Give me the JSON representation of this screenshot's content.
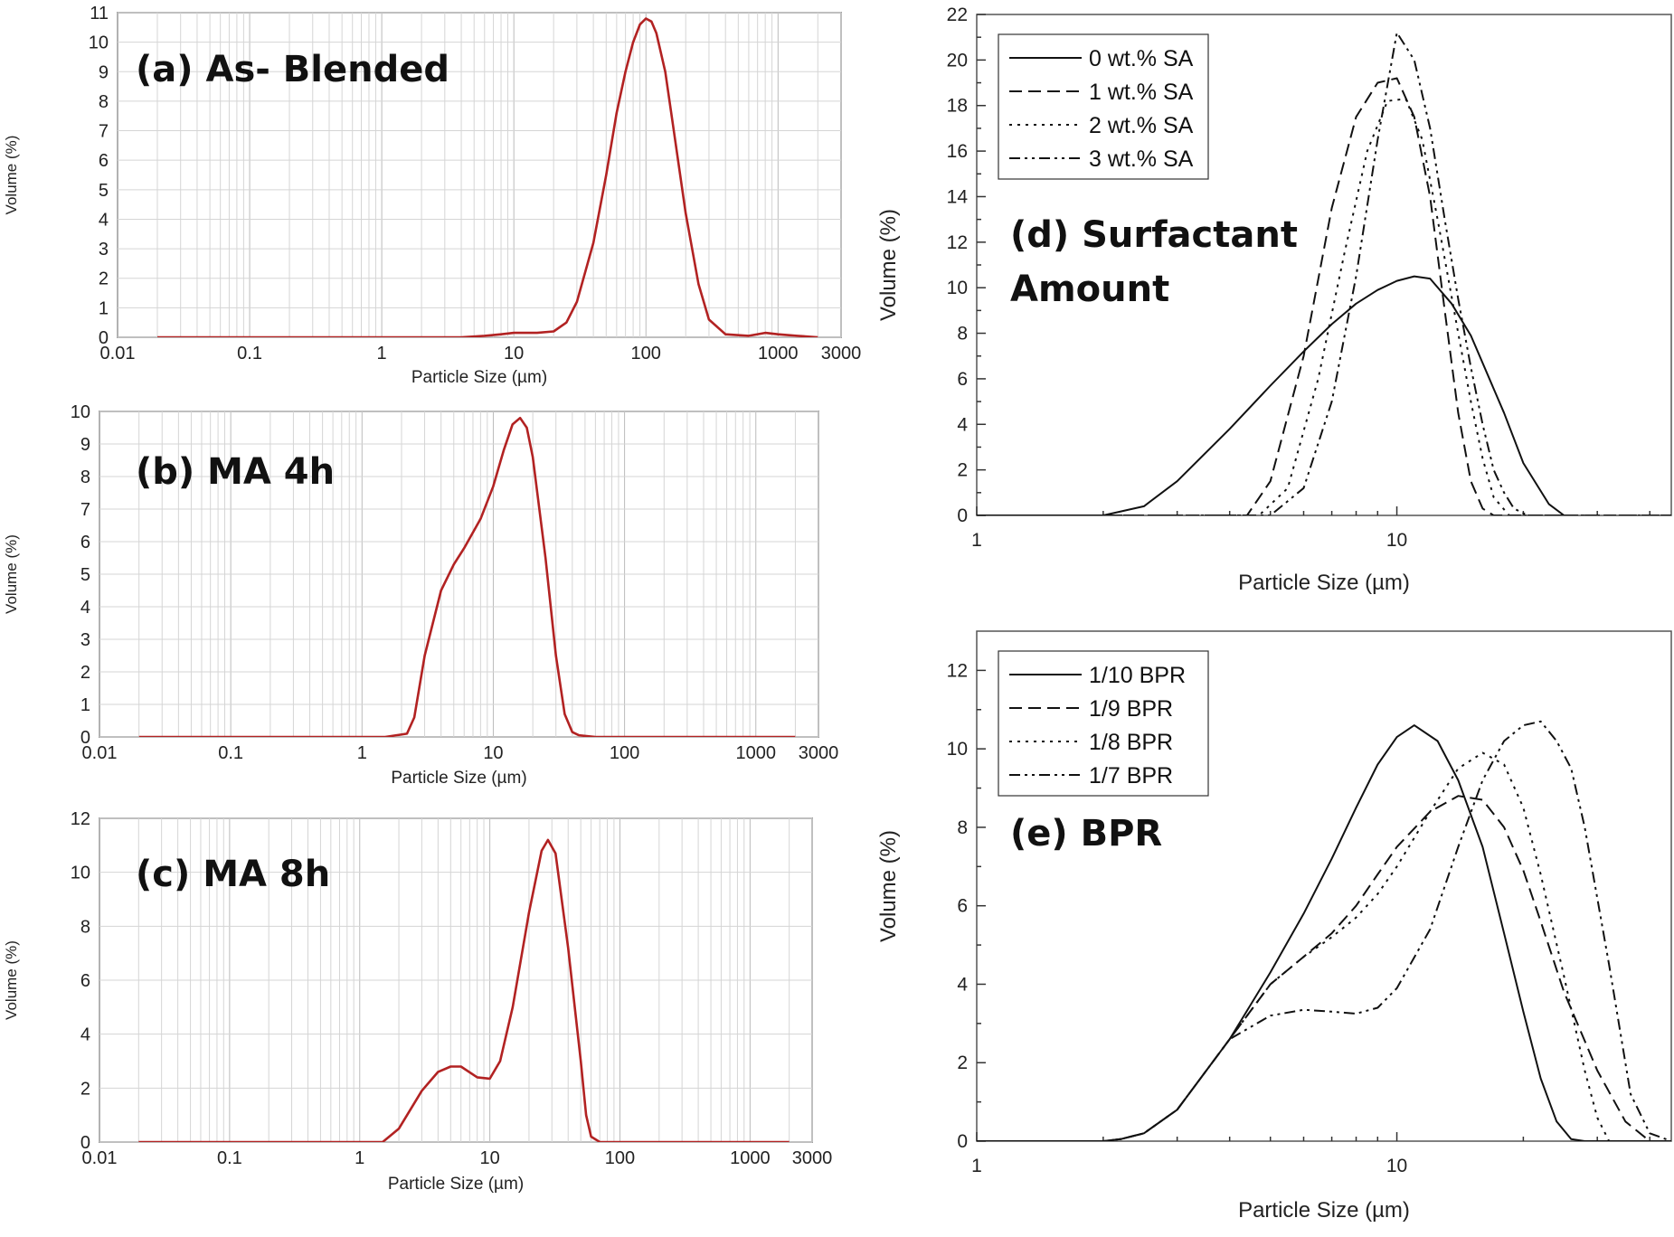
{
  "figure": {
    "panels": [
      "a",
      "b",
      "c",
      "d",
      "e"
    ]
  },
  "chart_data": [
    {
      "id": "a",
      "type": "line",
      "title": "(a) As- Blended",
      "xlabel": "Particle Size (µm)",
      "ylabel": "Volume (%)",
      "xscale": "log",
      "xlim": [
        0.01,
        3000
      ],
      "ylim": [
        0,
        11
      ],
      "xticks": [
        0.01,
        0.1,
        1,
        10,
        100,
        1000,
        3000
      ],
      "xtick_labels": [
        "0.01",
        "0.1",
        "1",
        "10",
        "100",
        "1000",
        "3000"
      ],
      "yticks": [
        0,
        1,
        2,
        3,
        4,
        5,
        6,
        7,
        8,
        9,
        10,
        11
      ],
      "ytick_labels": [
        "0",
        "1",
        "2",
        "3",
        "4",
        "5",
        "6",
        "7",
        "8",
        "9",
        "10",
        "11"
      ],
      "grid": true,
      "series": [
        {
          "name": "As-Blended",
          "color": "#b22222",
          "style": "solid",
          "x": [
            0.02,
            0.5,
            4,
            6,
            8,
            10,
            15,
            20,
            25,
            30,
            40,
            50,
            60,
            70,
            80,
            90,
            100,
            110,
            120,
            140,
            160,
            200,
            250,
            300,
            400,
            600,
            800,
            1000,
            1400,
            2000
          ],
          "y": [
            0,
            0,
            0,
            0.05,
            0.1,
            0.15,
            0.15,
            0.2,
            0.5,
            1.2,
            3.2,
            5.5,
            7.6,
            9.0,
            10.0,
            10.6,
            10.8,
            10.7,
            10.3,
            9.0,
            7.2,
            4.2,
            1.8,
            0.6,
            0.1,
            0.05,
            0.15,
            0.1,
            0.05,
            0
          ]
        }
      ]
    },
    {
      "id": "b",
      "type": "line",
      "title": "(b) MA 4h",
      "xlabel": "Particle Size (µm)",
      "ylabel": "Volume (%)",
      "xscale": "log",
      "xlim": [
        0.01,
        3000
      ],
      "ylim": [
        0,
        10
      ],
      "xticks": [
        0.01,
        0.1,
        1,
        10,
        100,
        1000,
        3000
      ],
      "xtick_labels": [
        "0.01",
        "0.1",
        "1",
        "10",
        "100",
        "1000",
        "3000"
      ],
      "yticks": [
        0,
        1,
        2,
        3,
        4,
        5,
        6,
        7,
        8,
        9,
        10
      ],
      "ytick_labels": [
        "0",
        "1",
        "2",
        "3",
        "4",
        "5",
        "6",
        "7",
        "8",
        "9",
        "10"
      ],
      "grid": true,
      "series": [
        {
          "name": "MA 4h",
          "color": "#b22222",
          "style": "solid",
          "x": [
            0.02,
            1.5,
            2.2,
            2.5,
            3,
            4,
            5,
            6,
            8,
            10,
            12,
            14,
            16,
            18,
            20,
            25,
            30,
            35,
            40,
            45,
            60,
            200,
            2000
          ],
          "y": [
            0,
            0,
            0.1,
            0.6,
            2.5,
            4.5,
            5.3,
            5.8,
            6.7,
            7.7,
            8.8,
            9.6,
            9.8,
            9.5,
            8.6,
            5.5,
            2.5,
            0.7,
            0.15,
            0.05,
            0,
            0,
            0
          ]
        }
      ]
    },
    {
      "id": "c",
      "type": "line",
      "title": "(c) MA 8h",
      "xlabel": "Particle Size (µm)",
      "ylabel": "Volume (%)",
      "xscale": "log",
      "xlim": [
        0.01,
        3000
      ],
      "ylim": [
        0,
        12
      ],
      "xticks": [
        0.01,
        0.1,
        1,
        10,
        100,
        1000,
        3000
      ],
      "xtick_labels": [
        "0.01",
        "0.1",
        "1",
        "10",
        "100",
        "1000",
        "3000"
      ],
      "yticks": [
        0,
        2,
        4,
        6,
        8,
        10,
        12
      ],
      "ytick_labels": [
        "0",
        "2",
        "4",
        "6",
        "8",
        "10",
        "12"
      ],
      "grid": true,
      "series": [
        {
          "name": "MA 8h",
          "color": "#b22222",
          "style": "solid",
          "x": [
            0.02,
            1.5,
            2,
            3,
            4,
            5,
            6,
            8,
            10,
            12,
            15,
            20,
            25,
            28,
            32,
            40,
            50,
            55,
            60,
            70,
            200,
            2000
          ],
          "y": [
            0,
            0,
            0.5,
            1.9,
            2.6,
            2.8,
            2.8,
            2.4,
            2.35,
            3.0,
            5.0,
            8.5,
            10.8,
            11.2,
            10.7,
            7.2,
            3.0,
            1.0,
            0.2,
            0,
            0,
            0
          ]
        }
      ]
    },
    {
      "id": "d",
      "type": "line",
      "title": "(d) Surfactant",
      "title_line2": "Amount",
      "xlabel": "Particle Size (µm)",
      "ylabel": "Volume (%)",
      "xscale": "log",
      "xlim": [
        1,
        45
      ],
      "ylim": [
        0,
        22
      ],
      "xticks": [
        1,
        10
      ],
      "xtick_labels": [
        "1",
        "10"
      ],
      "yticks": [
        0,
        2,
        4,
        6,
        8,
        10,
        12,
        14,
        16,
        18,
        20,
        22
      ],
      "ytick_labels": [
        "0",
        "2",
        "4",
        "6",
        "8",
        "10",
        "12",
        "14",
        "16",
        "18",
        "20",
        "22"
      ],
      "grid": false,
      "legend": "top-left",
      "series": [
        {
          "name": "0 wt.% SA",
          "color": "#111111",
          "style": "solid",
          "x": [
            1,
            2,
            2.5,
            3,
            4,
            5,
            6,
            7,
            8,
            9,
            10,
            11,
            12,
            13.5,
            15,
            18,
            20,
            23,
            25
          ],
          "y": [
            0,
            0,
            0.4,
            1.5,
            3.8,
            5.7,
            7.2,
            8.4,
            9.3,
            9.9,
            10.3,
            10.5,
            10.4,
            9.3,
            7.9,
            4.5,
            2.3,
            0.5,
            0
          ]
        },
        {
          "name": "1 wt.% SA",
          "color": "#111111",
          "style": "dashed",
          "x": [
            1,
            4.4,
            5,
            6,
            7,
            8,
            9,
            10,
            11,
            12,
            13,
            14,
            15,
            16,
            17,
            18,
            45
          ],
          "y": [
            0,
            0,
            1.5,
            7,
            13.5,
            17.5,
            19,
            19.2,
            17.5,
            14,
            9,
            4.5,
            1.5,
            0.3,
            0,
            0,
            0
          ]
        },
        {
          "name": "2 wt.% SA",
          "color": "#111111",
          "style": "dotted",
          "x": [
            1,
            4.7,
            5.5,
            6.5,
            7.5,
            8.5,
            9.5,
            10.5,
            11.5,
            12.5,
            14,
            15,
            16,
            17,
            18.5,
            45
          ],
          "y": [
            0,
            0,
            1.2,
            6,
            11.5,
            16,
            18.2,
            18.3,
            16.5,
            13,
            8,
            5,
            2.5,
            0.8,
            0,
            0
          ]
        },
        {
          "name": "3 wt.% SA",
          "color": "#111111",
          "style": "dashdotdot",
          "x": [
            1,
            5,
            6,
            7,
            8,
            9,
            10,
            11,
            12,
            13,
            14,
            15,
            16,
            17,
            18,
            19,
            20.5,
            45
          ],
          "y": [
            0,
            0,
            1.2,
            5,
            10.5,
            16.5,
            21.2,
            20,
            17,
            13,
            9.5,
            6.5,
            4,
            2,
            1,
            0.3,
            0,
            0
          ]
        }
      ]
    },
    {
      "id": "e",
      "type": "line",
      "title": "(e) BPR",
      "xlabel": "Particle Size (µm)",
      "ylabel": "Volume (%)",
      "xscale": "log",
      "xlim": [
        1,
        45
      ],
      "ylim": [
        0,
        13
      ],
      "xticks": [
        1,
        10
      ],
      "xtick_labels": [
        "1",
        "10"
      ],
      "yticks": [
        0,
        2,
        4,
        6,
        8,
        10,
        12
      ],
      "ytick_labels": [
        "0",
        "2",
        "4",
        "6",
        "8",
        "10",
        "12"
      ],
      "grid": false,
      "legend": "top-left",
      "series": [
        {
          "name": "1/10 BPR",
          "color": "#111111",
          "style": "solid",
          "x": [
            1,
            2,
            2.2,
            2.5,
            3,
            4,
            5,
            6,
            7,
            8,
            9,
            10,
            11,
            12.5,
            14,
            16,
            18,
            20,
            22,
            24,
            26,
            28,
            45
          ],
          "y": [
            0,
            0,
            0.05,
            0.2,
            0.8,
            2.6,
            4.3,
            5.8,
            7.2,
            8.5,
            9.6,
            10.3,
            10.6,
            10.2,
            9.2,
            7.5,
            5.3,
            3.3,
            1.6,
            0.5,
            0.05,
            0,
            0
          ]
        },
        {
          "name": "1/9 BPR",
          "color": "#111111",
          "style": "dashed",
          "x": [
            1,
            2,
            2.2,
            2.5,
            3,
            4,
            5,
            6,
            7,
            8,
            9,
            10,
            12,
            14,
            16,
            18,
            20,
            22,
            25,
            30,
            35,
            40,
            45
          ],
          "y": [
            0,
            0,
            0.05,
            0.2,
            0.8,
            2.6,
            4.0,
            4.7,
            5.3,
            6.0,
            6.8,
            7.5,
            8.4,
            8.8,
            8.7,
            8.0,
            6.9,
            5.6,
            3.8,
            1.8,
            0.5,
            0,
            0
          ]
        },
        {
          "name": "1/8 BPR",
          "color": "#111111",
          "style": "dotted",
          "x": [
            1,
            2,
            2.2,
            2.5,
            3,
            4,
            5,
            6,
            7,
            8,
            9,
            10,
            12,
            14,
            16,
            18,
            20,
            22,
            25,
            28,
            30,
            32,
            45
          ],
          "y": [
            0,
            0,
            0.05,
            0.2,
            0.8,
            2.6,
            4.0,
            4.7,
            5.2,
            5.7,
            6.3,
            7.0,
            8.4,
            9.5,
            9.9,
            9.6,
            8.5,
            6.8,
            4.2,
            1.8,
            0.6,
            0,
            0
          ]
        },
        {
          "name": "1/7 BPR",
          "color": "#111111",
          "style": "dashdotdot",
          "x": [
            1,
            2,
            2.2,
            2.5,
            3,
            4,
            5,
            6,
            7,
            8,
            9,
            10,
            12,
            14,
            16,
            18,
            20,
            22,
            24,
            26,
            28,
            32,
            36,
            40,
            45
          ],
          "y": [
            0,
            0,
            0.05,
            0.2,
            0.8,
            2.6,
            3.2,
            3.35,
            3.3,
            3.25,
            3.4,
            3.9,
            5.4,
            7.5,
            9.2,
            10.2,
            10.6,
            10.7,
            10.2,
            9.5,
            8.0,
            4.5,
            1.2,
            0.2,
            0
          ]
        }
      ]
    }
  ]
}
